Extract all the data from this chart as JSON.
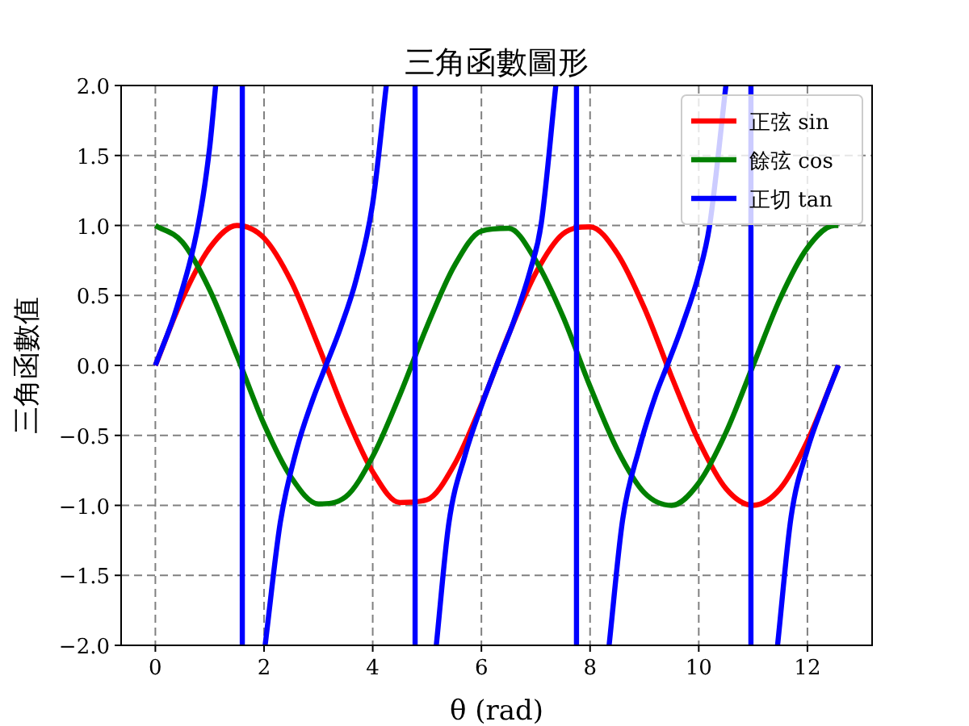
{
  "chart_data": {
    "type": "line",
    "title": "三角函數圖形",
    "xlabel": "θ (rad)",
    "ylabel": "三角函數值",
    "series": [
      {
        "name": "正弦 sin",
        "color": "#ff0000",
        "x": [
          0,
          0.5,
          1,
          1.5,
          2,
          2.5,
          3,
          3.5,
          4,
          4.5,
          5,
          5.5,
          6,
          6.5,
          7,
          7.5,
          8,
          8.5,
          9,
          9.5,
          10,
          10.5,
          11,
          11.5,
          12,
          12.57
        ],
        "values": [
          0,
          0.48,
          0.84,
          1.0,
          0.91,
          0.6,
          0.14,
          -0.35,
          -0.76,
          -0.98,
          -0.96,
          -0.71,
          -0.28,
          0.22,
          0.66,
          0.94,
          0.99,
          0.8,
          0.41,
          -0.08,
          -0.54,
          -0.88,
          -1.0,
          -0.88,
          -0.54,
          0
        ]
      },
      {
        "name": "餘弦 cos",
        "color": "#008000",
        "x": [
          0,
          0.5,
          1,
          1.5,
          2,
          2.5,
          3,
          3.5,
          4,
          4.5,
          5,
          5.5,
          6,
          6.5,
          7,
          7.5,
          8,
          8.5,
          9,
          9.5,
          10,
          10.5,
          11,
          11.5,
          12,
          12.5,
          12.57
        ],
        "values": [
          1,
          0.88,
          0.54,
          0.07,
          -0.42,
          -0.8,
          -0.99,
          -0.94,
          -0.65,
          -0.21,
          0.28,
          0.71,
          0.96,
          0.98,
          0.75,
          0.35,
          -0.15,
          -0.6,
          -0.91,
          -1.0,
          -0.84,
          -0.48,
          0.0,
          0.48,
          0.84,
          1.0,
          1.0
        ]
      },
      {
        "name": "正切 tan",
        "color": "#0000ff",
        "x": [
          0,
          0.4,
          0.8,
          1.0,
          1.11,
          null,
          1.6,
          1.6,
          null,
          2.02,
          2.3,
          2.6,
          2.9,
          3.14,
          3.4,
          3.7,
          4.0,
          4.25,
          null,
          4.78,
          4.78,
          null,
          5.17,
          5.4,
          5.7,
          6.0,
          6.28,
          6.6,
          6.9,
          7.1,
          7.37,
          null,
          7.75,
          7.75,
          null,
          8.35,
          8.6,
          8.9,
          9.2,
          9.42,
          9.7,
          10.0,
          10.2,
          10.5,
          null,
          10.96,
          10.96,
          null,
          11.45,
          11.7,
          12.0,
          12.3,
          12.57
        ],
        "values": [
          0,
          0.42,
          1.03,
          1.56,
          2.0,
          null,
          2.0,
          -2.0,
          null,
          -2.0,
          -1.12,
          -0.6,
          -0.24,
          0,
          0.26,
          0.62,
          1.16,
          2.0,
          null,
          2.0,
          -2.0,
          null,
          -2.0,
          -1.13,
          -0.64,
          -0.29,
          0,
          0.32,
          0.68,
          1.01,
          2.0,
          null,
          2.0,
          -2.0,
          null,
          -2.0,
          -1.1,
          -0.6,
          -0.22,
          0,
          0.29,
          0.65,
          1.0,
          2.0,
          null,
          2.0,
          -2.0,
          null,
          -2.0,
          -1.08,
          -0.6,
          -0.27,
          0
        ]
      }
    ],
    "xlim": [
      -0.63,
      13.19
    ],
    "ylim": [
      -2.0,
      2.0
    ],
    "xticks": [
      0,
      2,
      4,
      6,
      8,
      10,
      12
    ],
    "yticks": [
      {
        "value": -2.0,
        "label": "−2.0"
      },
      {
        "value": -1.5,
        "label": "−1.5"
      },
      {
        "value": -1.0,
        "label": "−1.0"
      },
      {
        "value": -0.5,
        "label": "−0.5"
      },
      {
        "value": 0.0,
        "label": "0.0"
      },
      {
        "value": 0.5,
        "label": "0.5"
      },
      {
        "value": 1.0,
        "label": "1.0"
      },
      {
        "value": 1.5,
        "label": "1.5"
      },
      {
        "value": 2.0,
        "label": "2.0"
      }
    ],
    "grid": true,
    "legend": "top right"
  }
}
